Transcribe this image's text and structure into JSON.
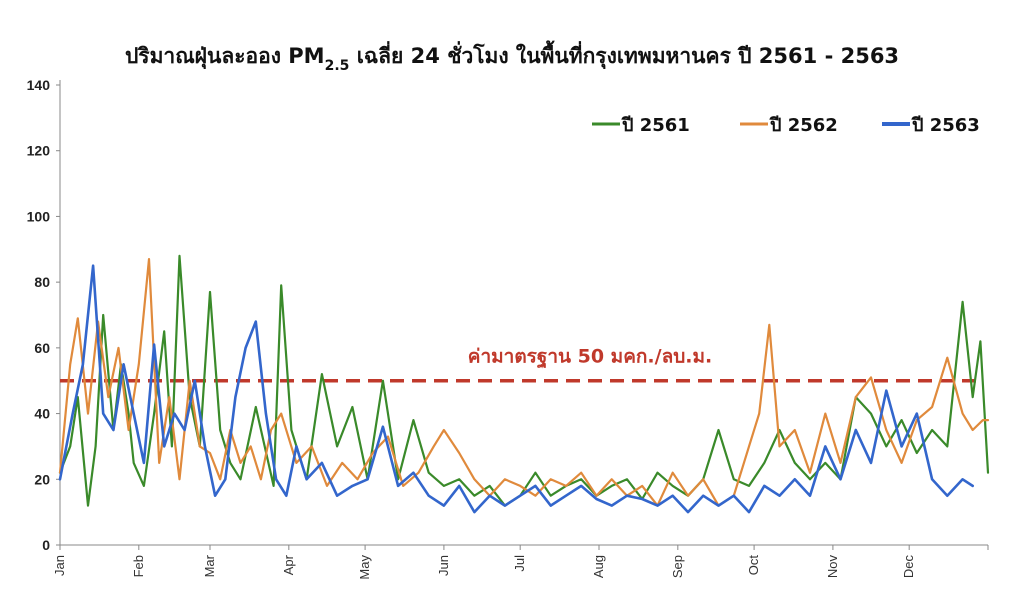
{
  "chart_data": {
    "type": "line",
    "title_main": "ปริมาณฝุ่นละออง PM",
    "title_sub": "2.5",
    "title_rest": " เฉลี่ย 24 ชั่วโมง ในพื้นที่กรุงเทพมหานคร ปี 2561 - 2563",
    "ylim": [
      0,
      140
    ],
    "yticks": [
      "0",
      "20",
      "40",
      "60",
      "80",
      "100",
      "120",
      "140"
    ],
    "xlim": [
      1,
      366
    ],
    "months": [
      {
        "label": "Jan",
        "day": 1
      },
      {
        "label": "Feb",
        "day": 32
      },
      {
        "label": "Mar",
        "day": 60
      },
      {
        "label": "Apr",
        "day": 91
      },
      {
        "label": "May",
        "day": 121
      },
      {
        "label": "Jun",
        "day": 152
      },
      {
        "label": "Jul",
        "day": 182
      },
      {
        "label": "Aug",
        "day": 213
      },
      {
        "label": "Sep",
        "day": 244
      },
      {
        "label": "Oct",
        "day": 274
      },
      {
        "label": "Nov",
        "day": 305
      },
      {
        "label": "Dec",
        "day": 335
      }
    ],
    "legend_position": "top-right",
    "grid": false,
    "standard": {
      "value": 50,
      "label": "ค่ามาตรฐาน 50 มคก./ลบ.ม.",
      "color": "#c0392b"
    },
    "series": [
      {
        "name": "ปี 2561",
        "color": "#3a8a2a",
        "points": [
          [
            1,
            22
          ],
          [
            5,
            30
          ],
          [
            8,
            45
          ],
          [
            12,
            12
          ],
          [
            15,
            30
          ],
          [
            18,
            70
          ],
          [
            22,
            35
          ],
          [
            25,
            55
          ],
          [
            28,
            40
          ],
          [
            30,
            25
          ],
          [
            34,
            18
          ],
          [
            38,
            40
          ],
          [
            42,
            65
          ],
          [
            45,
            30
          ],
          [
            48,
            88
          ],
          [
            52,
            45
          ],
          [
            56,
            30
          ],
          [
            60,
            77
          ],
          [
            64,
            35
          ],
          [
            68,
            25
          ],
          [
            72,
            20
          ],
          [
            78,
            42
          ],
          [
            85,
            18
          ],
          [
            88,
            79
          ],
          [
            92,
            35
          ],
          [
            98,
            20
          ],
          [
            104,
            52
          ],
          [
            110,
            30
          ],
          [
            116,
            42
          ],
          [
            122,
            20
          ],
          [
            128,
            50
          ],
          [
            134,
            20
          ],
          [
            140,
            38
          ],
          [
            146,
            22
          ],
          [
            152,
            18
          ],
          [
            158,
            20
          ],
          [
            164,
            15
          ],
          [
            170,
            18
          ],
          [
            176,
            12
          ],
          [
            182,
            15
          ],
          [
            188,
            22
          ],
          [
            194,
            15
          ],
          [
            200,
            18
          ],
          [
            206,
            20
          ],
          [
            212,
            15
          ],
          [
            218,
            18
          ],
          [
            224,
            20
          ],
          [
            230,
            14
          ],
          [
            236,
            22
          ],
          [
            242,
            18
          ],
          [
            248,
            15
          ],
          [
            254,
            20
          ],
          [
            260,
            35
          ],
          [
            266,
            20
          ],
          [
            272,
            18
          ],
          [
            278,
            25
          ],
          [
            284,
            35
          ],
          [
            290,
            25
          ],
          [
            296,
            20
          ],
          [
            302,
            25
          ],
          [
            308,
            20
          ],
          [
            314,
            45
          ],
          [
            320,
            40
          ],
          [
            326,
            30
          ],
          [
            332,
            38
          ],
          [
            338,
            28
          ],
          [
            344,
            35
          ],
          [
            350,
            30
          ],
          [
            356,
            74
          ],
          [
            360,
            45
          ],
          [
            363,
            62
          ],
          [
            366,
            22
          ]
        ]
      },
      {
        "name": "ปี 2562",
        "color": "#e08a3c",
        "points": [
          [
            1,
            22
          ],
          [
            5,
            55
          ],
          [
            8,
            69
          ],
          [
            12,
            40
          ],
          [
            16,
            68
          ],
          [
            20,
            45
          ],
          [
            24,
            60
          ],
          [
            28,
            35
          ],
          [
            32,
            55
          ],
          [
            36,
            87
          ],
          [
            40,
            25
          ],
          [
            44,
            45
          ],
          [
            48,
            20
          ],
          [
            52,
            50
          ],
          [
            56,
            30
          ],
          [
            60,
            28
          ],
          [
            64,
            20
          ],
          [
            68,
            35
          ],
          [
            72,
            25
          ],
          [
            76,
            30
          ],
          [
            80,
            20
          ],
          [
            84,
            35
          ],
          [
            88,
            40
          ],
          [
            94,
            25
          ],
          [
            100,
            30
          ],
          [
            106,
            18
          ],
          [
            112,
            25
          ],
          [
            118,
            20
          ],
          [
            124,
            28
          ],
          [
            130,
            33
          ],
          [
            136,
            18
          ],
          [
            142,
            22
          ],
          [
            148,
            30
          ],
          [
            152,
            35
          ],
          [
            158,
            28
          ],
          [
            164,
            20
          ],
          [
            170,
            15
          ],
          [
            176,
            20
          ],
          [
            182,
            18
          ],
          [
            188,
            15
          ],
          [
            194,
            20
          ],
          [
            200,
            18
          ],
          [
            206,
            22
          ],
          [
            212,
            15
          ],
          [
            218,
            20
          ],
          [
            224,
            15
          ],
          [
            230,
            18
          ],
          [
            236,
            12
          ],
          [
            242,
            22
          ],
          [
            248,
            15
          ],
          [
            254,
            20
          ],
          [
            260,
            12
          ],
          [
            266,
            15
          ],
          [
            272,
            30
          ],
          [
            276,
            40
          ],
          [
            280,
            67
          ],
          [
            284,
            30
          ],
          [
            290,
            35
          ],
          [
            296,
            22
          ],
          [
            302,
            40
          ],
          [
            308,
            25
          ],
          [
            314,
            45
          ],
          [
            320,
            51
          ],
          [
            326,
            35
          ],
          [
            332,
            25
          ],
          [
            338,
            38
          ],
          [
            344,
            42
          ],
          [
            350,
            57
          ],
          [
            356,
            40
          ],
          [
            360,
            35
          ],
          [
            364,
            38
          ],
          [
            366,
            38
          ]
        ]
      },
      {
        "name": "ปี 2563",
        "color": "#3366cc",
        "points": [
          [
            1,
            20
          ],
          [
            6,
            40
          ],
          [
            10,
            55
          ],
          [
            14,
            85
          ],
          [
            18,
            40
          ],
          [
            22,
            35
          ],
          [
            26,
            55
          ],
          [
            30,
            40
          ],
          [
            34,
            25
          ],
          [
            38,
            61
          ],
          [
            42,
            30
          ],
          [
            46,
            40
          ],
          [
            50,
            35
          ],
          [
            54,
            50
          ],
          [
            58,
            30
          ],
          [
            62,
            15
          ],
          [
            66,
            20
          ],
          [
            70,
            45
          ],
          [
            74,
            60
          ],
          [
            78,
            68
          ],
          [
            82,
            40
          ],
          [
            86,
            20
          ],
          [
            90,
            15
          ],
          [
            94,
            30
          ],
          [
            98,
            20
          ],
          [
            104,
            25
          ],
          [
            110,
            15
          ],
          [
            116,
            18
          ],
          [
            122,
            20
          ],
          [
            128,
            36
          ],
          [
            134,
            18
          ],
          [
            140,
            22
          ],
          [
            146,
            15
          ],
          [
            152,
            12
          ],
          [
            158,
            18
          ],
          [
            164,
            10
          ],
          [
            170,
            15
          ],
          [
            176,
            12
          ],
          [
            182,
            15
          ],
          [
            188,
            18
          ],
          [
            194,
            12
          ],
          [
            200,
            15
          ],
          [
            206,
            18
          ],
          [
            212,
            14
          ],
          [
            218,
            12
          ],
          [
            224,
            15
          ],
          [
            230,
            14
          ],
          [
            236,
            12
          ],
          [
            242,
            15
          ],
          [
            248,
            10
          ],
          [
            254,
            15
          ],
          [
            260,
            12
          ],
          [
            266,
            15
          ],
          [
            272,
            10
          ],
          [
            278,
            18
          ],
          [
            284,
            15
          ],
          [
            290,
            20
          ],
          [
            296,
            15
          ],
          [
            302,
            30
          ],
          [
            308,
            20
          ],
          [
            314,
            35
          ],
          [
            320,
            25
          ],
          [
            326,
            47
          ],
          [
            332,
            30
          ],
          [
            338,
            40
          ],
          [
            344,
            20
          ],
          [
            350,
            15
          ],
          [
            356,
            20
          ],
          [
            360,
            18
          ]
        ]
      }
    ]
  }
}
